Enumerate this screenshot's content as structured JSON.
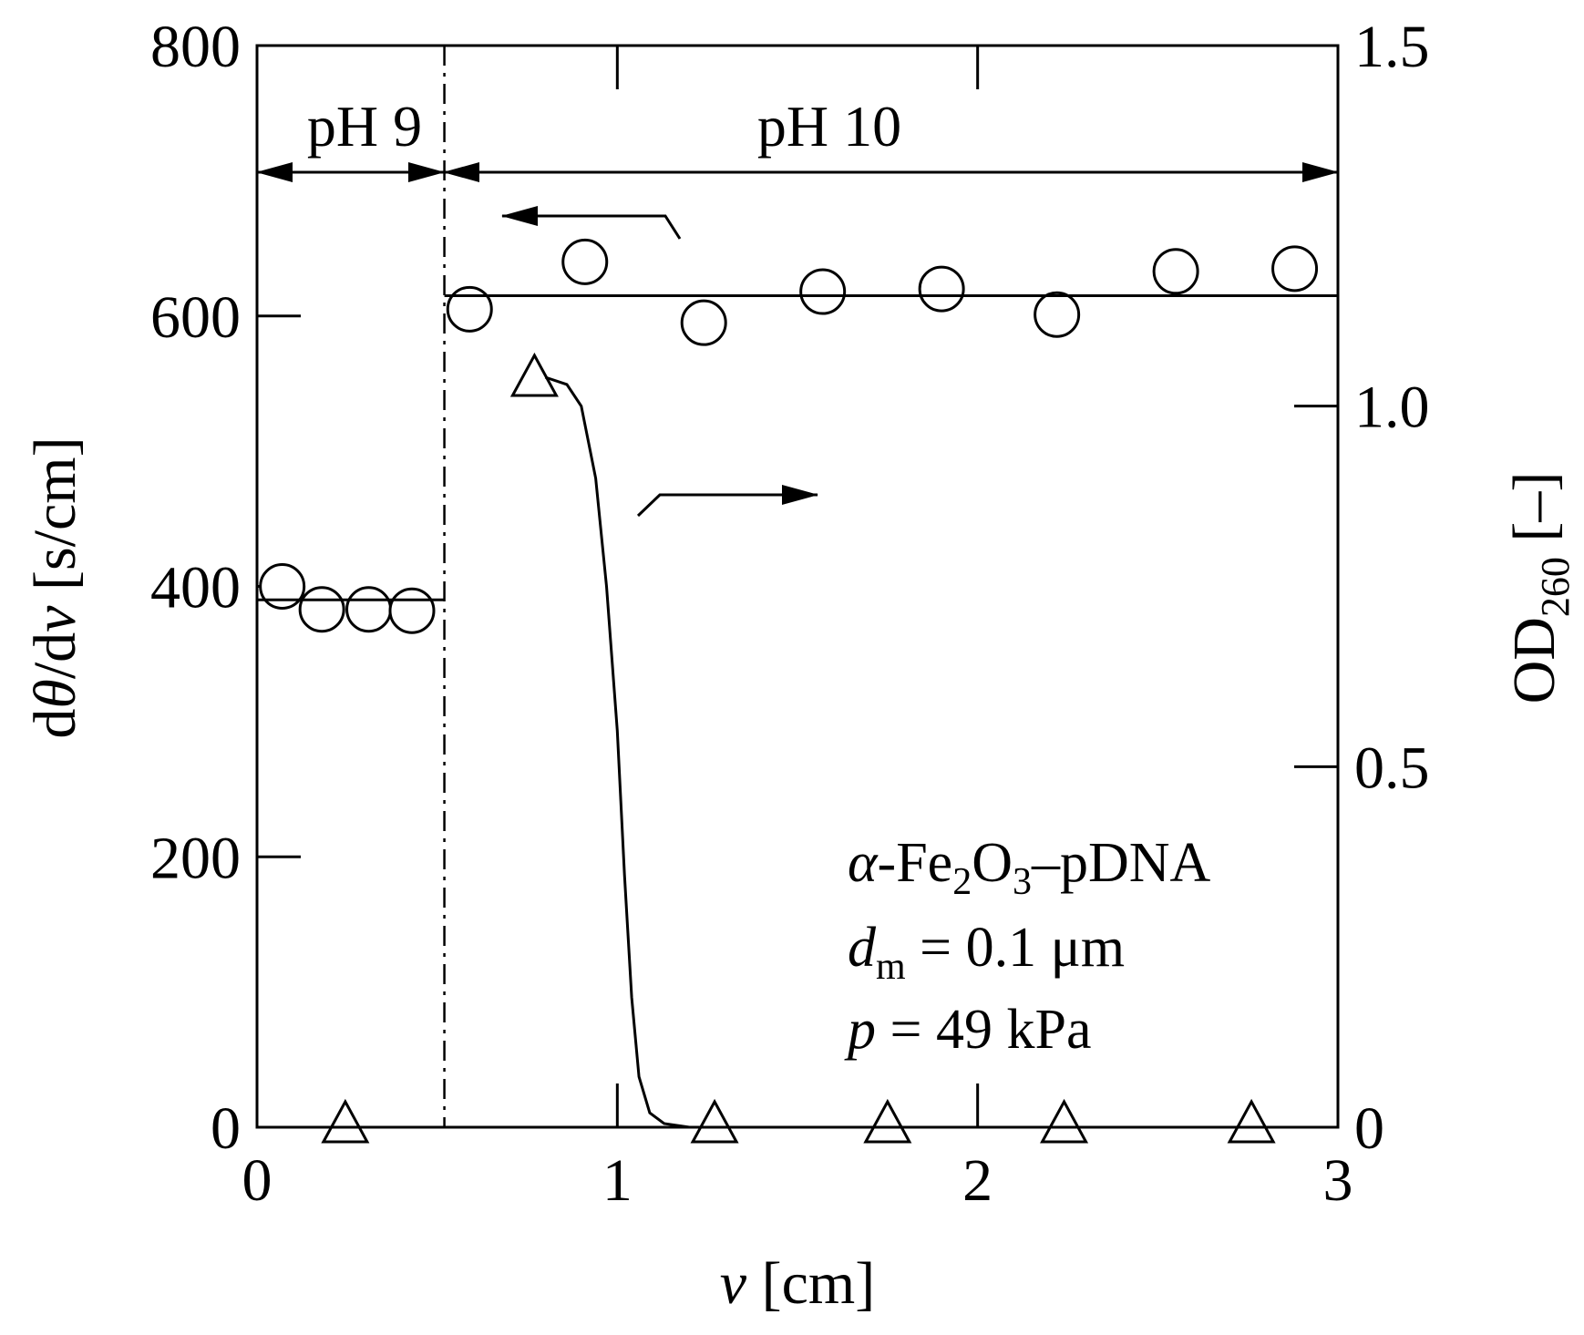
{
  "chart_data": {
    "type": "scatter",
    "xlim": [
      0,
      3
    ],
    "xticks": [
      0,
      1,
      2,
      3
    ],
    "ylim": [
      0,
      800
    ],
    "yticks": [
      0,
      200,
      400,
      600,
      800
    ],
    "y2lim": [
      0,
      1.5
    ],
    "y2ticks": [
      0,
      0.5,
      {
        "value": 1,
        "label": "1.0"
      },
      1.5
    ],
    "grid": false,
    "x_label": [
      "v",
      "  [cm]"
    ],
    "y_label": [
      "d",
      "θ",
      "/d",
      "v",
      "  [s/cm]"
    ],
    "y2_label": [
      "OD",
      "260",
      "  [–]"
    ],
    "regions": [
      "pH 9",
      "pH 10"
    ],
    "boundary_x": 0.52,
    "annotations": [
      [
        "α",
        "-Fe",
        "2",
        "O",
        "3",
        "–pDNA"
      ],
      [
        "d",
        "m",
        " = 0.1 μm"
      ],
      [
        "p",
        " = 49 kPa"
      ]
    ],
    "series": [
      {
        "mode": "markers",
        "marker": "circle",
        "axis": "y",
        "color": "#000000",
        "x": [
          0.07,
          0.18,
          0.31,
          0.43,
          0.59,
          0.91,
          1.24,
          1.57,
          1.9,
          2.22,
          2.55,
          2.88
        ],
        "values": [
          400,
          383,
          383,
          382,
          605,
          640,
          595,
          618,
          620,
          601,
          633,
          635
        ]
      },
      {
        "mode": "markers",
        "marker": "triangle",
        "axis": "y2",
        "color": "#000000",
        "x": [
          0.245,
          0.77,
          1.27,
          1.75,
          2.24,
          2.76
        ],
        "values": [
          0,
          1.035,
          0,
          0,
          0,
          0
        ]
      },
      {
        "mode": "line",
        "axis": "y",
        "color": "#000000",
        "x": [
          0,
          0.52
        ],
        "values": [
          390,
          390
        ]
      },
      {
        "mode": "line",
        "axis": "y",
        "color": "#000000",
        "x": [
          0.52,
          3
        ],
        "values": [
          615,
          615
        ]
      },
      {
        "mode": "line",
        "axis": "y2",
        "color": "#000000",
        "x": [
          0,
          0.52,
          0.52,
          0.8,
          0.86,
          0.9,
          0.94,
          0.97,
          1.0,
          1.02,
          1.04,
          1.06,
          1.09,
          1.13,
          1.2,
          3
        ],
        "values": [
          0,
          0,
          null,
          1.04,
          1.03,
          1.0,
          0.9,
          0.75,
          0.55,
          0.35,
          0.18,
          0.07,
          0.02,
          0.005,
          0,
          0
        ]
      }
    ]
  }
}
